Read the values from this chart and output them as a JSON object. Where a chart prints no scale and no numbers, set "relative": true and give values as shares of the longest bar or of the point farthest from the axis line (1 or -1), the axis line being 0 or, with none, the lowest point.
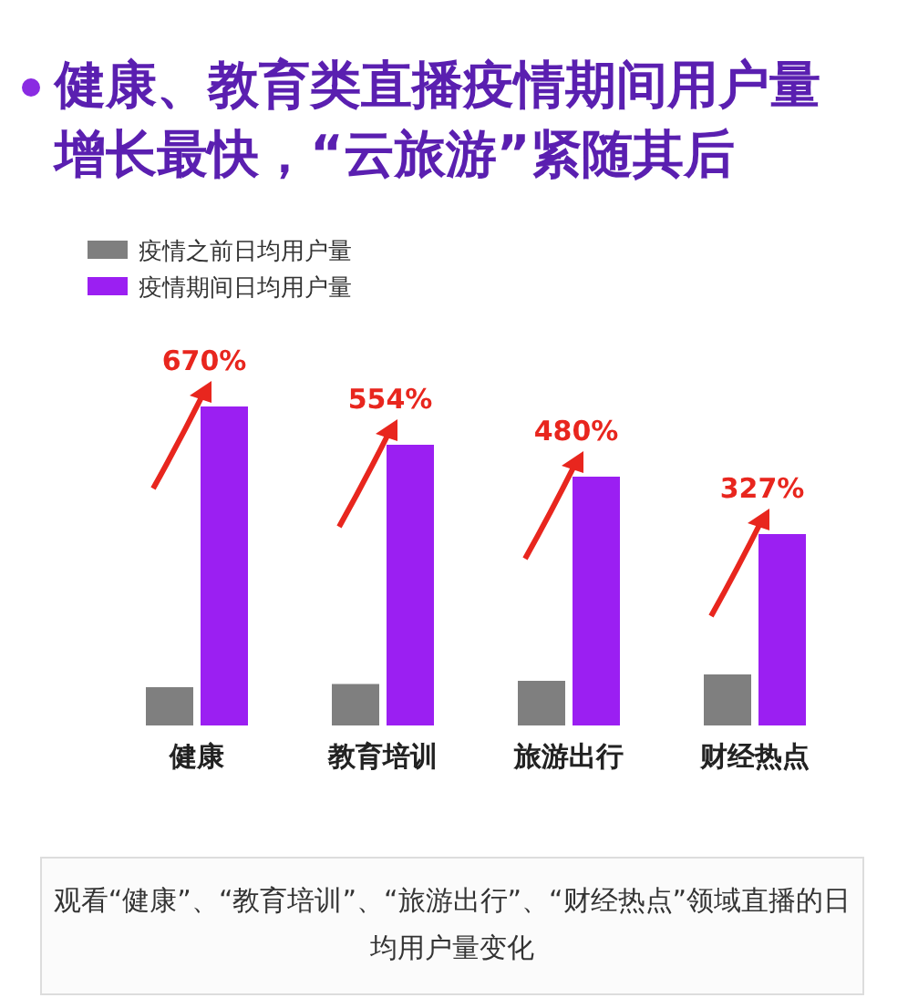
{
  "chart_data": {
    "type": "bar",
    "relative": true,
    "title": "健康、教育类直播疫情期间用户量增长最快，“云旅游”紧随其后",
    "categories": [
      "健康",
      "教育培训",
      "旅游出行",
      "财经热点"
    ],
    "series": [
      {
        "name": "疫情之前日均用户量",
        "color": "#7f7f7f",
        "values": [
          0.12,
          0.13,
          0.14,
          0.16
        ]
      },
      {
        "name": "疫情期间日均用户量",
        "color": "#9b1ff2",
        "values": [
          1,
          0.88,
          0.78,
          0.6
        ]
      }
    ],
    "legend": "top left",
    "annotations": [
      {
        "text": "670%",
        "x": "健康",
        "y": 1
      },
      {
        "text": "554%",
        "x": "教育培训",
        "y": 0.88
      },
      {
        "text": "480%",
        "x": "旅游出行",
        "y": 0.78
      },
      {
        "text": "327%",
        "x": "财经热点",
        "y": 0.6
      },
      "观看“健康”、“教育培训”、“旅游出行”、“财经热点”领域直播的日均用户量变化"
    ]
  }
}
